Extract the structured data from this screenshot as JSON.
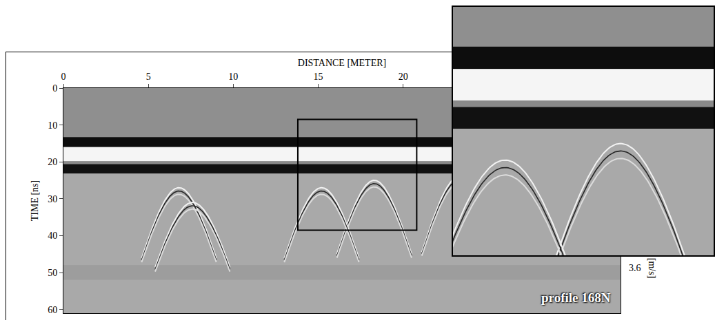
{
  "chart_data": {
    "type": "radargram",
    "x_label": "DISTANCE [METER]",
    "y_label": "TIME [ns]",
    "xlim": [
      0,
      32.8
    ],
    "xticks": [
      0,
      5,
      10,
      15,
      20
    ],
    "ylim": [
      0,
      61
    ],
    "yticks": [
      0,
      10,
      20,
      30,
      40,
      50,
      60
    ],
    "annotations": [
      "profile 168N"
    ],
    "colorbar": {
      "ticks": [
        3.6
      ],
      "label": "[m/s]"
    },
    "layers": [
      {
        "t": [
          0,
          13.3
        ],
        "color": "#8f8f8f"
      },
      {
        "t": [
          13.3,
          16
        ],
        "color": "#0d0d0d"
      },
      {
        "t": [
          16,
          19.8
        ],
        "color": "#f5f5f5"
      },
      {
        "t": [
          19.8,
          20.6
        ],
        "color": "#8a8a8a"
      },
      {
        "t": [
          20.6,
          23.2
        ],
        "color": "#111111"
      },
      {
        "t": [
          23.2,
          48
        ],
        "color": "#a9a9a9"
      },
      {
        "t": [
          48,
          52
        ],
        "color": "#9d9d9d"
      },
      {
        "t": [
          52,
          61
        ],
        "color": "#a9a9a9"
      }
    ],
    "reflections": [
      {
        "x": 18.3,
        "t": 25
      },
      {
        "x": 15.2,
        "t": 27
      },
      {
        "x": 6.8,
        "t": 27
      },
      {
        "x": 7.6,
        "t": 31
      },
      {
        "x": 23.3,
        "t": 24
      }
    ],
    "zoom_box": {
      "x": [
        13.8,
        20.8
      ],
      "t": [
        8.5,
        38.5
      ]
    }
  }
}
